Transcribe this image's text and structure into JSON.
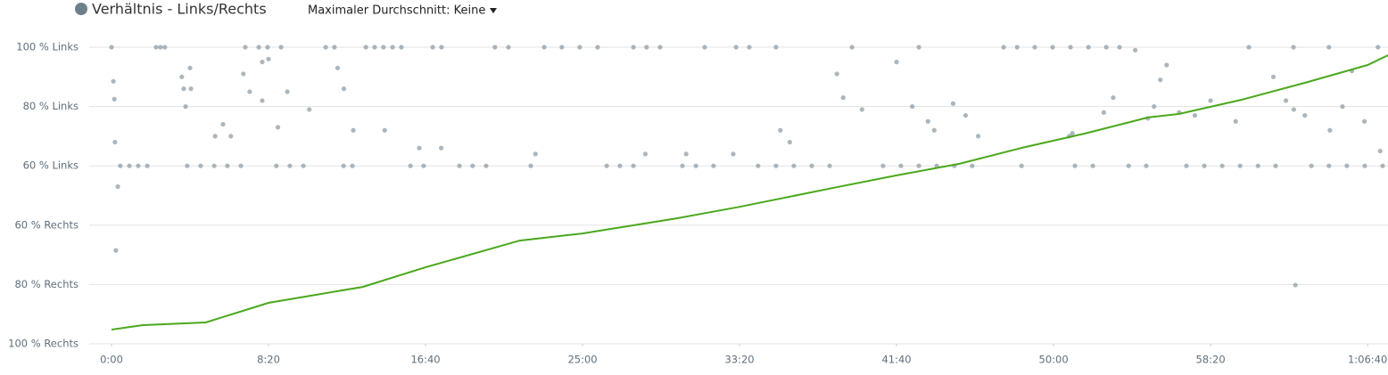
{
  "chart_data": {
    "type": "scatter",
    "dropdown": "Maximaler Durchschnitt: Keine",
    "xlim": [
      0,
      4065
    ],
    "xticks": [
      {
        "value": 0,
        "label": "0:00"
      },
      {
        "value": 500,
        "label": "8:20"
      },
      {
        "value": 1000,
        "label": "16:40"
      },
      {
        "value": 1500,
        "label": "25:00"
      },
      {
        "value": 2000,
        "label": "33:20"
      },
      {
        "value": 2500,
        "label": "41:40"
      },
      {
        "value": 3000,
        "label": "50:00"
      },
      {
        "value": 3500,
        "label": "58:20"
      },
      {
        "value": 4000,
        "label": "1:06:40"
      }
    ],
    "ylim": [
      0,
      100
    ],
    "yticks": [
      {
        "value": 100,
        "label": "100 % Links"
      },
      {
        "value": 80,
        "label": "80 % Links"
      },
      {
        "value": 60,
        "label": "60 % Links"
      },
      {
        "value": 40,
        "label": "60 % Rechts"
      },
      {
        "value": 20,
        "label": "80 % Rechts"
      },
      {
        "value": 0,
        "label": "100 % Rechts"
      }
    ],
    "grid": true,
    "series": [
      {
        "name": "Verhältnis - Links/Rechts",
        "type": "scatter",
        "color": "#8797a3",
        "x": [
          0,
          142,
          156,
          170,
          426,
          469,
          497,
          540,
          682,
          710,
          810,
          838,
          866,
          895,
          923,
          1023,
          1051,
          1221,
          1264,
          1378,
          1434,
          1491,
          1548,
          1662,
          1704,
          1747,
          1889,
          1989,
          2031,
          2116,
          2358,
          2571,
          2841,
          2884,
          2940,
          2997,
          3054,
          3111,
          3168,
          3210,
          3622,
          3764,
          3877,
          4033,
          28,
          57,
          85,
          114,
          241,
          284,
          327,
          369,
          412,
          525,
          568,
          611,
          739,
          767,
          952,
          994,
          1108,
          1150,
          1193,
          1335,
          1577,
          1619,
          1662,
          1818,
          1861,
          1917,
          2059,
          2116,
          2173,
          2230,
          2287,
          2457,
          2514,
          2571,
          2628,
          2684,
          2741,
          2898,
          3068,
          3125,
          3239,
          3295,
          3423,
          3480,
          3537,
          3594,
          3651,
          3707,
          3821,
          3877,
          3934,
          3991,
          4048,
          6,
          9,
          11,
          20,
          14,
          224,
          230,
          236,
          250,
          253,
          330,
          355,
          380,
          420,
          440,
          480,
          500,
          480,
          530,
          560,
          630,
          720,
          740,
          770,
          870,
          980,
          1050,
          1350,
          1700,
          1830,
          1980,
          2130,
          2160,
          2310,
          2330,
          2390,
          2500,
          2550,
          2600,
          2620,
          2680,
          2720,
          2760,
          3050,
          3060,
          3160,
          3190,
          3260,
          3300,
          3320,
          3340,
          3360,
          3400,
          3450,
          3500,
          3580,
          3700,
          3740,
          3765,
          3770,
          3800,
          3880,
          3920,
          3950,
          3990,
          4040
        ],
        "values": [
          100,
          100,
          100,
          100,
          100,
          100,
          100,
          100,
          100,
          100,
          100,
          100,
          100,
          100,
          100,
          100,
          100,
          100,
          100,
          100,
          100,
          100,
          100,
          100,
          100,
          100,
          100,
          100,
          100,
          100,
          100,
          100,
          100,
          100,
          100,
          100,
          100,
          100,
          100,
          100,
          100,
          100,
          100,
          100,
          60,
          60,
          60,
          60,
          60,
          60,
          60,
          60,
          60,
          60,
          60,
          60,
          60,
          60,
          60,
          60,
          60,
          60,
          60,
          60,
          60,
          60,
          60,
          60,
          60,
          60,
          60,
          60,
          60,
          60,
          60,
          60,
          60,
          60,
          60,
          60,
          60,
          60,
          60,
          60,
          60,
          60,
          60,
          60,
          60,
          60,
          60,
          60,
          60,
          60,
          60,
          60,
          60,
          88.5,
          82.5,
          68,
          53,
          31.5,
          90,
          86,
          80,
          93,
          86,
          70,
          74,
          70,
          91,
          85,
          95,
          96,
          82,
          73,
          85,
          79,
          93,
          86,
          72,
          72,
          66,
          66,
          64,
          64,
          64,
          64,
          72,
          68,
          91,
          83,
          79,
          95,
          80,
          75,
          72,
          81,
          77,
          70,
          70,
          71,
          78,
          83,
          99,
          76,
          80,
          89,
          94,
          78,
          77,
          82,
          75,
          90,
          82,
          79,
          19.8,
          77,
          72,
          80,
          92,
          75,
          65
        ]
      },
      {
        "type": "line",
        "color": "#4aa81c",
        "x": [
          0,
          100,
          300,
          500,
          800,
          1000,
          1300,
          1500,
          1800,
          2000,
          2300,
          2500,
          2700,
          2900,
          3100,
          3300,
          3400,
          3600,
          3800,
          4000,
          4065
        ],
        "values": [
          4.8,
          6.3,
          7.2,
          13.8,
          19.2,
          25.8,
          34.8,
          37.2,
          42.3,
          46.2,
          52.6,
          56.8,
          60.7,
          66.1,
          70.9,
          76.3,
          77.5,
          82.3,
          88,
          94,
          97.3
        ]
      }
    ]
  }
}
